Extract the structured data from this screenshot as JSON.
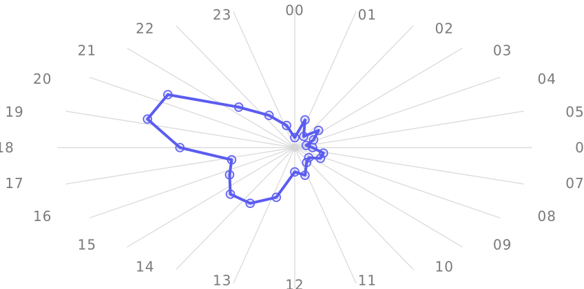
{
  "chart_data": {
    "type": "radar",
    "categories": [
      "00",
      "01",
      "02",
      "03",
      "04",
      "05",
      "06",
      "07",
      "08",
      "09",
      "10",
      "11",
      "12",
      "13",
      "14",
      "15",
      "16",
      "17",
      "18",
      "19",
      "20",
      "21",
      "22",
      "23"
    ],
    "series": [
      {
        "values": [
          7,
          20,
          9,
          17,
          11,
          6,
          9,
          15,
          15,
          10,
          12,
          20,
          17,
          36,
          45,
          46,
          38,
          33,
          58,
          77,
          74,
          40,
          26,
          16
        ],
        "color": "#5b5cf0"
      }
    ],
    "title": "",
    "rlim": [
      0,
      120
    ],
    "grid": true,
    "legend": "none"
  }
}
